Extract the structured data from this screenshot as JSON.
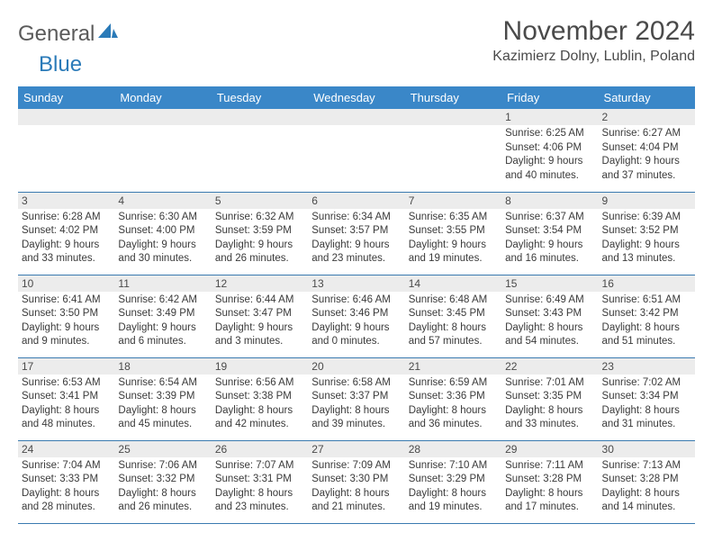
{
  "logo": {
    "part1": "General",
    "part2": "Blue"
  },
  "title": "November 2024",
  "location": "Kazimierz Dolny, Lublin, Poland",
  "colors": {
    "header_bg": "#3a87c8",
    "header_fg": "#ffffff",
    "row_divider": "#3a7ab0",
    "daynum_bg": "#ececec",
    "logo_blue": "#2a7ab8",
    "logo_gray": "#5a5a5a"
  },
  "weekdays": [
    "Sunday",
    "Monday",
    "Tuesday",
    "Wednesday",
    "Thursday",
    "Friday",
    "Saturday"
  ],
  "weeks": [
    [
      null,
      null,
      null,
      null,
      null,
      {
        "n": "1",
        "sunrise": "6:25 AM",
        "sunset": "4:06 PM",
        "daylight": "9 hours and 40 minutes."
      },
      {
        "n": "2",
        "sunrise": "6:27 AM",
        "sunset": "4:04 PM",
        "daylight": "9 hours and 37 minutes."
      }
    ],
    [
      {
        "n": "3",
        "sunrise": "6:28 AM",
        "sunset": "4:02 PM",
        "daylight": "9 hours and 33 minutes."
      },
      {
        "n": "4",
        "sunrise": "6:30 AM",
        "sunset": "4:00 PM",
        "daylight": "9 hours and 30 minutes."
      },
      {
        "n": "5",
        "sunrise": "6:32 AM",
        "sunset": "3:59 PM",
        "daylight": "9 hours and 26 minutes."
      },
      {
        "n": "6",
        "sunrise": "6:34 AM",
        "sunset": "3:57 PM",
        "daylight": "9 hours and 23 minutes."
      },
      {
        "n": "7",
        "sunrise": "6:35 AM",
        "sunset": "3:55 PM",
        "daylight": "9 hours and 19 minutes."
      },
      {
        "n": "8",
        "sunrise": "6:37 AM",
        "sunset": "3:54 PM",
        "daylight": "9 hours and 16 minutes."
      },
      {
        "n": "9",
        "sunrise": "6:39 AM",
        "sunset": "3:52 PM",
        "daylight": "9 hours and 13 minutes."
      }
    ],
    [
      {
        "n": "10",
        "sunrise": "6:41 AM",
        "sunset": "3:50 PM",
        "daylight": "9 hours and 9 minutes."
      },
      {
        "n": "11",
        "sunrise": "6:42 AM",
        "sunset": "3:49 PM",
        "daylight": "9 hours and 6 minutes."
      },
      {
        "n": "12",
        "sunrise": "6:44 AM",
        "sunset": "3:47 PM",
        "daylight": "9 hours and 3 minutes."
      },
      {
        "n": "13",
        "sunrise": "6:46 AM",
        "sunset": "3:46 PM",
        "daylight": "9 hours and 0 minutes."
      },
      {
        "n": "14",
        "sunrise": "6:48 AM",
        "sunset": "3:45 PM",
        "daylight": "8 hours and 57 minutes."
      },
      {
        "n": "15",
        "sunrise": "6:49 AM",
        "sunset": "3:43 PM",
        "daylight": "8 hours and 54 minutes."
      },
      {
        "n": "16",
        "sunrise": "6:51 AM",
        "sunset": "3:42 PM",
        "daylight": "8 hours and 51 minutes."
      }
    ],
    [
      {
        "n": "17",
        "sunrise": "6:53 AM",
        "sunset": "3:41 PM",
        "daylight": "8 hours and 48 minutes."
      },
      {
        "n": "18",
        "sunrise": "6:54 AM",
        "sunset": "3:39 PM",
        "daylight": "8 hours and 45 minutes."
      },
      {
        "n": "19",
        "sunrise": "6:56 AM",
        "sunset": "3:38 PM",
        "daylight": "8 hours and 42 minutes."
      },
      {
        "n": "20",
        "sunrise": "6:58 AM",
        "sunset": "3:37 PM",
        "daylight": "8 hours and 39 minutes."
      },
      {
        "n": "21",
        "sunrise": "6:59 AM",
        "sunset": "3:36 PM",
        "daylight": "8 hours and 36 minutes."
      },
      {
        "n": "22",
        "sunrise": "7:01 AM",
        "sunset": "3:35 PM",
        "daylight": "8 hours and 33 minutes."
      },
      {
        "n": "23",
        "sunrise": "7:02 AM",
        "sunset": "3:34 PM",
        "daylight": "8 hours and 31 minutes."
      }
    ],
    [
      {
        "n": "24",
        "sunrise": "7:04 AM",
        "sunset": "3:33 PM",
        "daylight": "8 hours and 28 minutes."
      },
      {
        "n": "25",
        "sunrise": "7:06 AM",
        "sunset": "3:32 PM",
        "daylight": "8 hours and 26 minutes."
      },
      {
        "n": "26",
        "sunrise": "7:07 AM",
        "sunset": "3:31 PM",
        "daylight": "8 hours and 23 minutes."
      },
      {
        "n": "27",
        "sunrise": "7:09 AM",
        "sunset": "3:30 PM",
        "daylight": "8 hours and 21 minutes."
      },
      {
        "n": "28",
        "sunrise": "7:10 AM",
        "sunset": "3:29 PM",
        "daylight": "8 hours and 19 minutes."
      },
      {
        "n": "29",
        "sunrise": "7:11 AM",
        "sunset": "3:28 PM",
        "daylight": "8 hours and 17 minutes."
      },
      {
        "n": "30",
        "sunrise": "7:13 AM",
        "sunset": "3:28 PM",
        "daylight": "8 hours and 14 minutes."
      }
    ]
  ],
  "labels": {
    "sunrise": "Sunrise:",
    "sunset": "Sunset:",
    "daylight": "Daylight:"
  }
}
